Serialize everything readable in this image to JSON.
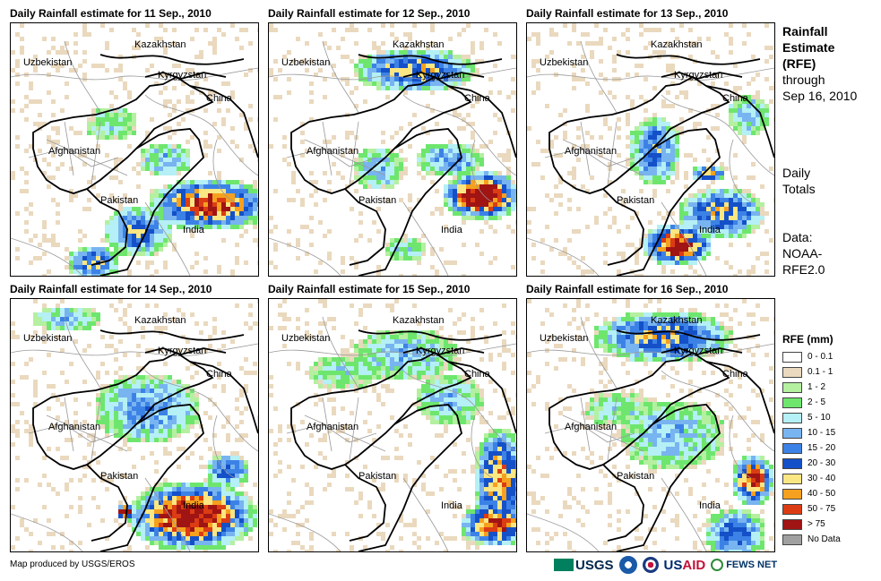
{
  "panels": [
    {
      "title": "Daily Rainfall estimate for 11 Sep., 2010"
    },
    {
      "title": "Daily Rainfall estimate for 12 Sep., 2010"
    },
    {
      "title": "Daily Rainfall estimate for 13 Sep., 2010"
    },
    {
      "title": "Daily Rainfall estimate for 14 Sep., 2010"
    },
    {
      "title": "Daily Rainfall estimate for 15 Sep., 2010"
    },
    {
      "title": "Daily Rainfall estimate for 16 Sep., 2010"
    }
  ],
  "map_labels": {
    "kazakhstan": "Kazakhstan",
    "uzbekistan": "Uzbekistan",
    "kyrgyzstan": "Kyrgyzstan",
    "china": "China",
    "afghanistan": "Afghanistan",
    "pakistan": "Pakistan",
    "india": "India"
  },
  "side": {
    "title_line1": "Rainfall",
    "title_line2": "Estimate",
    "title_line3": "(RFE)",
    "title_line4": "through",
    "title_line5": "Sep 16, 2010",
    "daily1": "Daily",
    "daily2": "Totals",
    "data1": "Data:",
    "data2": "NOAA-",
    "data3": "RFE2.0"
  },
  "legend": {
    "title": "RFE (mm)",
    "items": [
      {
        "label": "0 - 0.1",
        "color": "#ffffff"
      },
      {
        "label": "0.1 - 1",
        "color": "#ead9be"
      },
      {
        "label": "1 - 2",
        "color": "#b4f0a0"
      },
      {
        "label": "2 - 5",
        "color": "#6ee66e"
      },
      {
        "label": "5 - 10",
        "color": "#b4f0f5"
      },
      {
        "label": "10 - 15",
        "color": "#78b4f0"
      },
      {
        "label": "15 - 20",
        "color": "#3c82e6"
      },
      {
        "label": "20 - 30",
        "color": "#1450c8"
      },
      {
        "label": "30 - 40",
        "color": "#fae682"
      },
      {
        "label": "40 - 50",
        "color": "#f5a01e"
      },
      {
        "label": "50 - 75",
        "color": "#dc3c14"
      },
      {
        "label": "> 75",
        "color": "#a01414"
      },
      {
        "label": "No Data",
        "color": "#a0a0a0"
      }
    ]
  },
  "footer": {
    "credit": "Map produced by USGS/EROS",
    "usgs": "USGS",
    "usaid_us": "US",
    "usaid_aid": "AID",
    "fews": "FEWS NET"
  }
}
